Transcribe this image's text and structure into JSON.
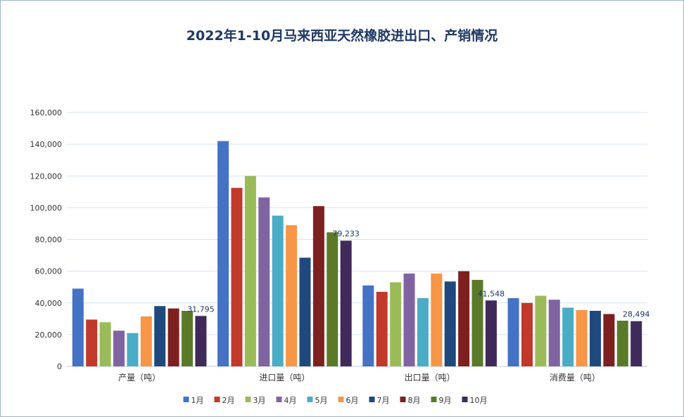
{
  "chart_data": {
    "type": "bar",
    "title": "2022年1-10月马来西亚天然橡胶进出口、产销情况",
    "xlabel": "",
    "ylabel": "",
    "ylim": [
      0,
      160000
    ],
    "yticks": [
      "0",
      "20,000",
      "40,000",
      "60,000",
      "80,000",
      "100,000",
      "120,000",
      "140,000",
      "160,000"
    ],
    "grid": true,
    "legend_position": "bottom",
    "categories": [
      "产量（吨）",
      "进口量（吨）",
      "出口量（吨）",
      "消费量（吨）"
    ],
    "series": [
      {
        "name": "1月",
        "color": "#4472c4",
        "values": [
          49000,
          142000,
          51000,
          43000
        ]
      },
      {
        "name": "2月",
        "color": "#c0392b",
        "values": [
          29500,
          112500,
          47000,
          40000
        ]
      },
      {
        "name": "3月",
        "color": "#9bbb59",
        "values": [
          27800,
          120000,
          53000,
          44500
        ]
      },
      {
        "name": "4月",
        "color": "#8064a2",
        "values": [
          22500,
          106500,
          58500,
          42000
        ]
      },
      {
        "name": "5月",
        "color": "#4bacc6",
        "values": [
          21000,
          95000,
          43000,
          37000
        ]
      },
      {
        "name": "6月",
        "color": "#f79646",
        "values": [
          31500,
          89000,
          58500,
          35500
        ]
      },
      {
        "name": "7月",
        "color": "#1f497d",
        "values": [
          38000,
          68500,
          53500,
          35000
        ]
      },
      {
        "name": "8月",
        "color": "#7f2020",
        "values": [
          36500,
          101000,
          60000,
          33000
        ]
      },
      {
        "name": "9月",
        "color": "#5a7a2a",
        "values": [
          35000,
          84500,
          54500,
          28800
        ]
      },
      {
        "name": "10月",
        "color": "#3f2a5a",
        "values": [
          31795,
          79233,
          41548,
          28494
        ]
      }
    ],
    "data_labels": [
      {
        "series": "10月",
        "category": "产量（吨）",
        "text": "31,795"
      },
      {
        "series": "10月",
        "category": "进口量（吨）",
        "text": "79,233"
      },
      {
        "series": "10月",
        "category": "出口量（吨）",
        "text": "41,548"
      },
      {
        "series": "10月",
        "category": "消费量（吨）",
        "text": "28,494"
      }
    ]
  }
}
